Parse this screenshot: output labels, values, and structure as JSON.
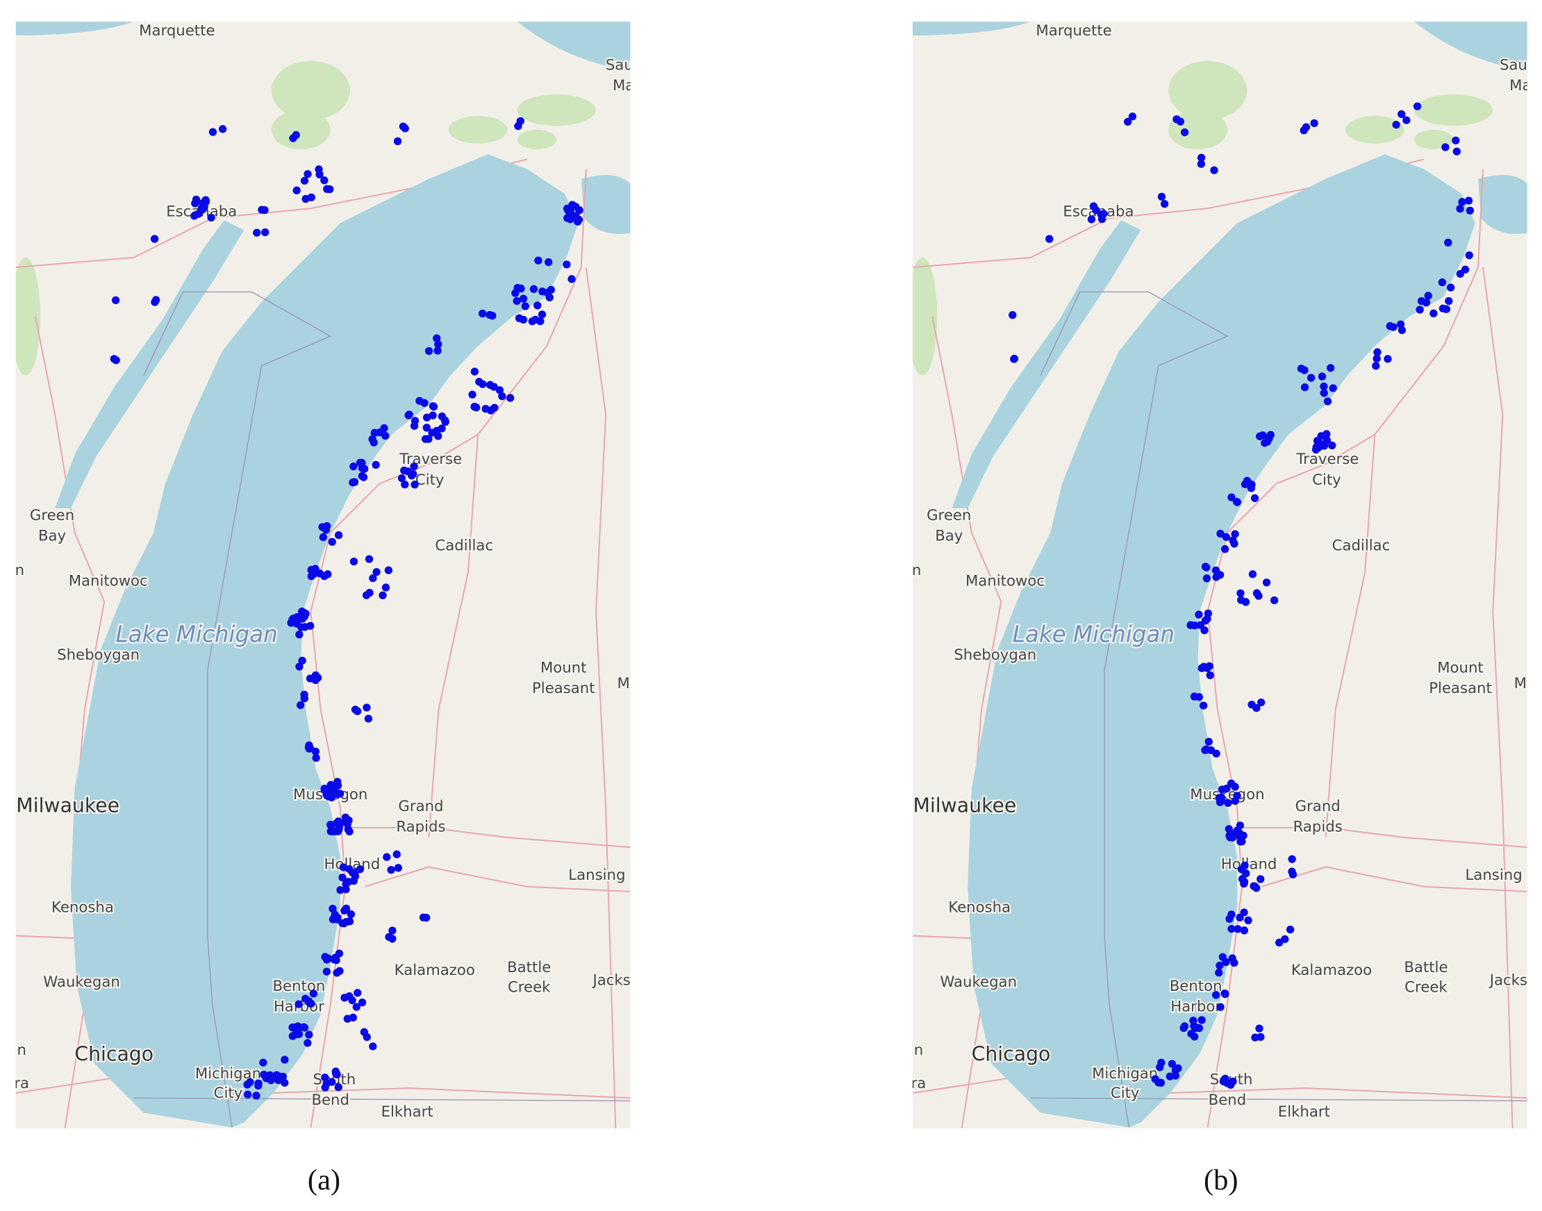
{
  "panels": [
    {
      "caption": "(a)",
      "labels": [
        "Marquette",
        "Saul",
        "Ma",
        "Escanaba",
        "Traverse",
        "City",
        "Green",
        "Bay",
        "Cadillac",
        "Manitowoc",
        "Lake Michigan",
        "Sheboygan",
        "Mount",
        "Pleasant",
        "M",
        "n",
        "Milwaukee",
        "Muskegon",
        "Grand",
        "Rapids",
        "Holland",
        "Lansing",
        "Kenosha",
        "Kalamazoo",
        "Battle",
        "Creek",
        "Jacks",
        "Waukegan",
        "Benton",
        "Harbor",
        "Chicago",
        "Michigan",
        "City",
        "South",
        "Bend",
        "Elkhart",
        "in",
        "ra"
      ]
    },
    {
      "caption": "(b)",
      "labels": [
        "Marquette",
        "Sault",
        "Ma",
        "Escanaba",
        "Traverse",
        "City",
        "Green",
        "Bay",
        "Cadillac",
        "Manitowoc",
        "Lake Michigan",
        "Sheboygan",
        "Mount",
        "Pleasant",
        "M",
        "n",
        "Milwaukee",
        "Muskegon",
        "Grand",
        "Rapids",
        "Holland",
        "Lansing",
        "Kenosha",
        "Kalamazoo",
        "Battle",
        "Creek",
        "Jacks",
        "Waukegan",
        "Benton",
        "Harbor",
        "Chicago",
        "Michigan",
        "City",
        "South",
        "Bend",
        "Elkhart",
        "in",
        "ra"
      ]
    }
  ]
}
